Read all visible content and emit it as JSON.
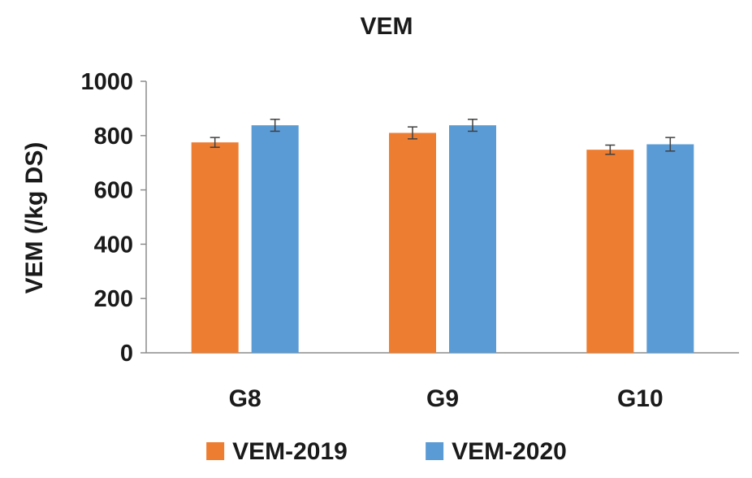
{
  "chart_data": {
    "type": "bar",
    "title": "VEM",
    "xlabel": "",
    "ylabel": "VEM (/kg DS)",
    "categories": [
      "G8",
      "G9",
      "G10"
    ],
    "ylim": [
      0,
      1000
    ],
    "yticks": [
      0,
      200,
      400,
      600,
      800,
      1000
    ],
    "grid": false,
    "legend_position": "bottom",
    "series": [
      {
        "name": "VEM-2019",
        "color": "#ED7D31",
        "values": [
          775,
          810,
          748
        ],
        "errors": [
          18,
          22,
          17
        ]
      },
      {
        "name": "VEM-2020",
        "color": "#5B9BD5",
        "values": [
          838,
          838,
          768
        ],
        "errors": [
          22,
          22,
          25
        ]
      }
    ]
  }
}
